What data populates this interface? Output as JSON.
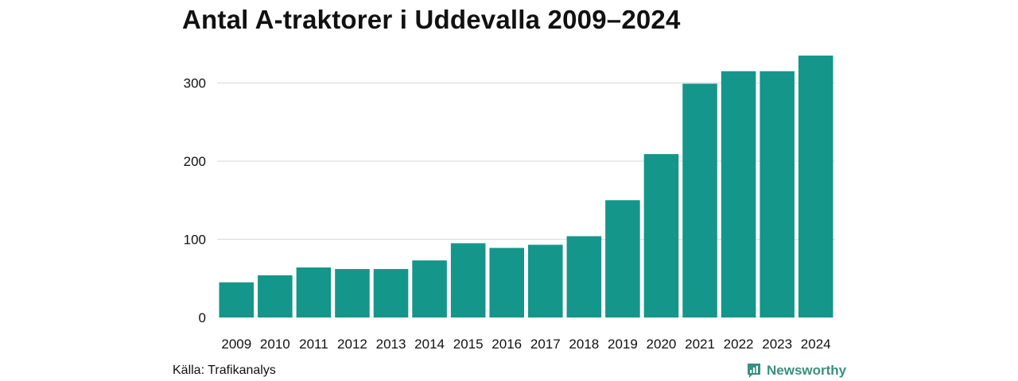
{
  "chart_data": {
    "type": "bar",
    "title": "Antal A-traktorer i Uddevalla 2009–2024",
    "categories": [
      "2009",
      "2010",
      "2011",
      "2012",
      "2013",
      "2014",
      "2015",
      "2016",
      "2017",
      "2018",
      "2019",
      "2020",
      "2021",
      "2022",
      "2023",
      "2024"
    ],
    "values": [
      45,
      54,
      64,
      62,
      62,
      73,
      95,
      89,
      93,
      104,
      150,
      209,
      299,
      315,
      315,
      335
    ],
    "xlabel": "",
    "ylabel": "",
    "ylim": [
      0,
      335
    ],
    "yticks": [
      0,
      100,
      200,
      300
    ],
    "grid": true,
    "bar_color": "#15968a"
  },
  "footer": {
    "source": "Källa: Trafikanalys",
    "brand": "Newsworthy"
  },
  "colors": {
    "bar": "#15968a",
    "gridline": "#dddddd",
    "brand": "#3a8f80"
  }
}
